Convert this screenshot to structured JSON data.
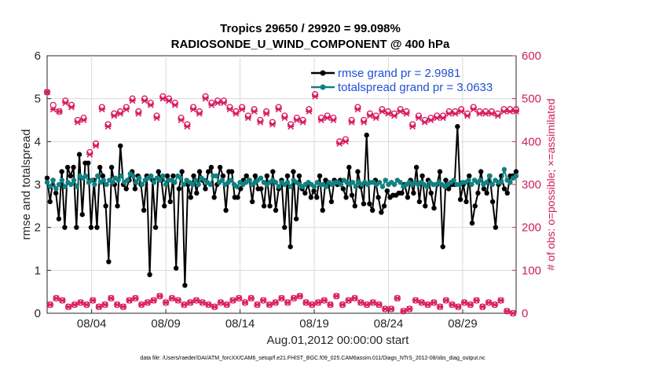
{
  "chart_data": {
    "type": "line",
    "title_line1": "Tropics 29650 / 29920 = 99.098%",
    "title_line2": "RADIOSONDE_U_WIND_COMPONENT @ 400 hPa",
    "xlabel": "Aug.01,2012 00:00:00 start",
    "ylabel_left": "rmse and totalspread",
    "ylabel_right": "# of obs: o=possible; ×=assimilated",
    "footer": "data file: /Users/raeder/DAI/ATM_forcXX/CAM6_setup/f.e21.FHIST_BGC.f09_025.CAM6assim.011/Diags_NTrS_2012-08/obs_diag_output.nc",
    "xlim": [
      1,
      32.6
    ],
    "ylim_left": [
      0,
      6
    ],
    "ylim_right": [
      0,
      600
    ],
    "x_tick_values": [
      4,
      9,
      14,
      19,
      24,
      29
    ],
    "x_tick_labels": [
      "08/04",
      "08/09",
      "08/14",
      "08/19",
      "08/24",
      "08/29"
    ],
    "y_left_ticks": [
      "0",
      "1",
      "2",
      "3",
      "4",
      "5",
      "6"
    ],
    "y_right_ticks": [
      "0",
      "100",
      "200",
      "300",
      "400",
      "500",
      "600"
    ],
    "colors": {
      "rmse": "#000000",
      "spread": "#118080",
      "obs": "#d81b60",
      "legend_text": "#1f4fd6"
    },
    "series": [
      {
        "name": "rmse grand pr = 2.9981",
        "axis": "left",
        "values": [
          3.15,
          2.6,
          3.1,
          2.8,
          2.2,
          3.3,
          2.0,
          3.4,
          3.2,
          3.4,
          2.0,
          3.7,
          2.3,
          3.5,
          3.5,
          2.0,
          3.1,
          2.0,
          3.4,
          3.2,
          2.5,
          1.2,
          3.4,
          3.0,
          2.5,
          3.9,
          3.0,
          2.9,
          3.1,
          3.3,
          2.9,
          3.2,
          3.0,
          2.4,
          3.2,
          0.9,
          3.1,
          2.0,
          3.3,
          3.1,
          2.5,
          3.2,
          2.6,
          3.2,
          1.05,
          2.9,
          3.3,
          0.65,
          3.0,
          2.7,
          3.2,
          2.8,
          3.3,
          3.1,
          2.9,
          3.3,
          3.4,
          2.7,
          3.0,
          3.4,
          3.2,
          2.4,
          3.3,
          3.3,
          2.7,
          2.7,
          2.9,
          3.1,
          3.2,
          3.1,
          2.6,
          3.2,
          2.9,
          2.9,
          2.5,
          3.2,
          2.5,
          3.3,
          2.4,
          2.9,
          3.1,
          2.0,
          3.2,
          1.55,
          3.3,
          2.2,
          3.2,
          2.9,
          2.8,
          3.0,
          2.7,
          2.85,
          2.7,
          3.2,
          2.4,
          3.1,
          3.0,
          2.6,
          3.1,
          3.0,
          3.1,
          2.9,
          2.7,
          3.4,
          2.75,
          2.5,
          3.3,
          2.95,
          2.55,
          4.15,
          2.55,
          2.4,
          3.1,
          2.7,
          2.35,
          2.5,
          2.85,
          2.7,
          2.75,
          2.75,
          2.8,
          2.8,
          3.0,
          2.7,
          3.1,
          2.8,
          3.4,
          2.6,
          3.2,
          2.5,
          3.1,
          2.8,
          2.45,
          3.0,
          3.3,
          1.55,
          3.1,
          2.9,
          3.0,
          3.0,
          4.35,
          2.65,
          3.0,
          2.6,
          3.2,
          2.1,
          2.5,
          2.8,
          3.3,
          2.9,
          2.8,
          3.2,
          2.6,
          2.0,
          3.0,
          3.2,
          2.9,
          2.8,
          3.2,
          3.2,
          3.3
        ]
      },
      {
        "name": "totalspread grand pr = 3.0633",
        "axis": "left",
        "values": [
          3.05,
          2.95,
          3.1,
          2.9,
          3.0,
          3.1,
          2.95,
          3.05,
          3.0,
          3.1,
          2.95,
          3.2,
          3.15,
          3.2,
          3.05,
          3.1,
          3.0,
          3.2,
          3.05,
          3.1,
          3.0,
          3.1,
          3.05,
          3.15,
          3.1,
          3.2,
          3.05,
          3.1,
          3.25,
          3.2,
          3.05,
          3.15,
          3.0,
          3.1,
          3.15,
          3.2,
          3.05,
          3.15,
          3.1,
          3.2,
          3.0,
          3.1,
          3.1,
          3.05,
          3.2,
          3.15,
          3.0,
          3.1,
          3.05,
          3.0,
          3.1,
          3.0,
          3.15,
          3.1,
          3.05,
          3.0,
          3.2,
          3.2,
          3.05,
          3.1,
          3.0,
          3.05,
          3.1,
          3.0,
          2.95,
          3.05,
          3.0,
          3.05,
          3.1,
          3.0,
          3.05,
          3.1,
          3.15,
          3.05,
          3.0,
          3.05,
          3.1,
          3.05,
          2.95,
          3.05,
          3.0,
          3.05,
          2.95,
          3.1,
          3.05,
          3.0,
          2.95,
          3.0,
          3.05,
          3.0,
          2.95,
          3.05,
          3.0,
          3.0,
          2.95,
          3.05,
          3.0,
          3.05,
          3.05,
          3.0,
          3.1,
          3.05,
          3.0,
          3.05,
          2.95,
          3.05,
          3.0,
          3.05,
          3.0,
          3.05,
          3.05,
          3.0,
          3.05,
          2.95,
          3.1,
          3.0,
          3.05,
          3.0,
          3.1,
          3.05,
          2.95,
          3.0,
          3.05,
          3.0,
          3.05,
          3.0,
          3.05,
          3.0,
          2.95,
          3.05,
          3.0,
          3.0,
          3.05,
          3.0,
          2.95,
          3.0,
          3.05,
          3.1,
          3.0,
          3.0,
          3.05,
          3.05,
          3.1,
          3.0,
          3.1,
          3.05,
          3.1,
          3.0,
          3.05,
          3.2,
          3.0,
          3.1,
          3.05,
          3.05,
          3.35,
          3.1,
          3.05,
          3.15,
          3.2
        ]
      },
      {
        "name": "# obs possible (o)",
        "axis": "right",
        "values": [
          515,
          20,
          485,
          35,
          470,
          30,
          495,
          15,
          485,
          20,
          450,
          25,
          455,
          20,
          375,
          30,
          395,
          15,
          480,
          20,
          440,
          35,
          465,
          20,
          470,
          15,
          480,
          30,
          500,
          35,
          470,
          20,
          500,
          25,
          490,
          30,
          460,
          40,
          505,
          25,
          500,
          35,
          490,
          30,
          455,
          20,
          440,
          25,
          480,
          30,
          470,
          25,
          505,
          20,
          490,
          15,
          495,
          25,
          495,
          20,
          480,
          30,
          470,
          35,
          480,
          25,
          460,
          35,
          475,
          20,
          450,
          30,
          470,
          20,
          445,
          25,
          480,
          35,
          460,
          25,
          440,
          35,
          455,
          40,
          450,
          25,
          475,
          20,
          510,
          25,
          455,
          30,
          460,
          20,
          455,
          40,
          400,
          20,
          405,
          30,
          450,
          35,
          480,
          25,
          450,
          20,
          465,
          25,
          460,
          20,
          475,
          10,
          470,
          10,
          465,
          35,
          475,
          5,
          470,
          10,
          440,
          30,
          460,
          25,
          450,
          20,
          455,
          25,
          460,
          15,
          460,
          30,
          470,
          20,
          470,
          15,
          475,
          25,
          465,
          20,
          480,
          30,
          470,
          15,
          470,
          25,
          470,
          20,
          465,
          30,
          475,
          5,
          475,
          0,
          475
        ]
      },
      {
        "name": "# obs assimilated (×)",
        "axis": "right",
        "values": [
          515,
          20,
          475,
          35,
          470,
          30,
          490,
          15,
          480,
          20,
          445,
          25,
          450,
          20,
          370,
          30,
          390,
          15,
          475,
          20,
          435,
          35,
          460,
          20,
          465,
          15,
          475,
          30,
          495,
          35,
          465,
          20,
          495,
          25,
          485,
          30,
          455,
          40,
          500,
          25,
          495,
          35,
          485,
          30,
          450,
          20,
          435,
          25,
          475,
          30,
          465,
          25,
          500,
          20,
          485,
          15,
          490,
          25,
          490,
          20,
          475,
          30,
          465,
          35,
          475,
          25,
          455,
          35,
          470,
          20,
          445,
          30,
          465,
          20,
          440,
          25,
          475,
          35,
          455,
          25,
          435,
          35,
          450,
          40,
          445,
          25,
          470,
          20,
          505,
          25,
          450,
          30,
          455,
          20,
          450,
          40,
          395,
          20,
          400,
          30,
          445,
          35,
          475,
          25,
          445,
          20,
          460,
          25,
          455,
          20,
          470,
          10,
          465,
          10,
          460,
          35,
          470,
          5,
          465,
          10,
          435,
          30,
          455,
          25,
          445,
          20,
          450,
          25,
          455,
          15,
          455,
          30,
          465,
          20,
          465,
          15,
          470,
          25,
          460,
          20,
          475,
          30,
          465,
          15,
          465,
          25,
          465,
          20,
          460,
          30,
          470,
          5,
          470,
          0,
          470
        ]
      }
    ],
    "legend": {
      "placement": "top-right",
      "items": [
        "rmse grand pr = 2.9981",
        "totalspread grand pr = 3.0633"
      ]
    }
  }
}
